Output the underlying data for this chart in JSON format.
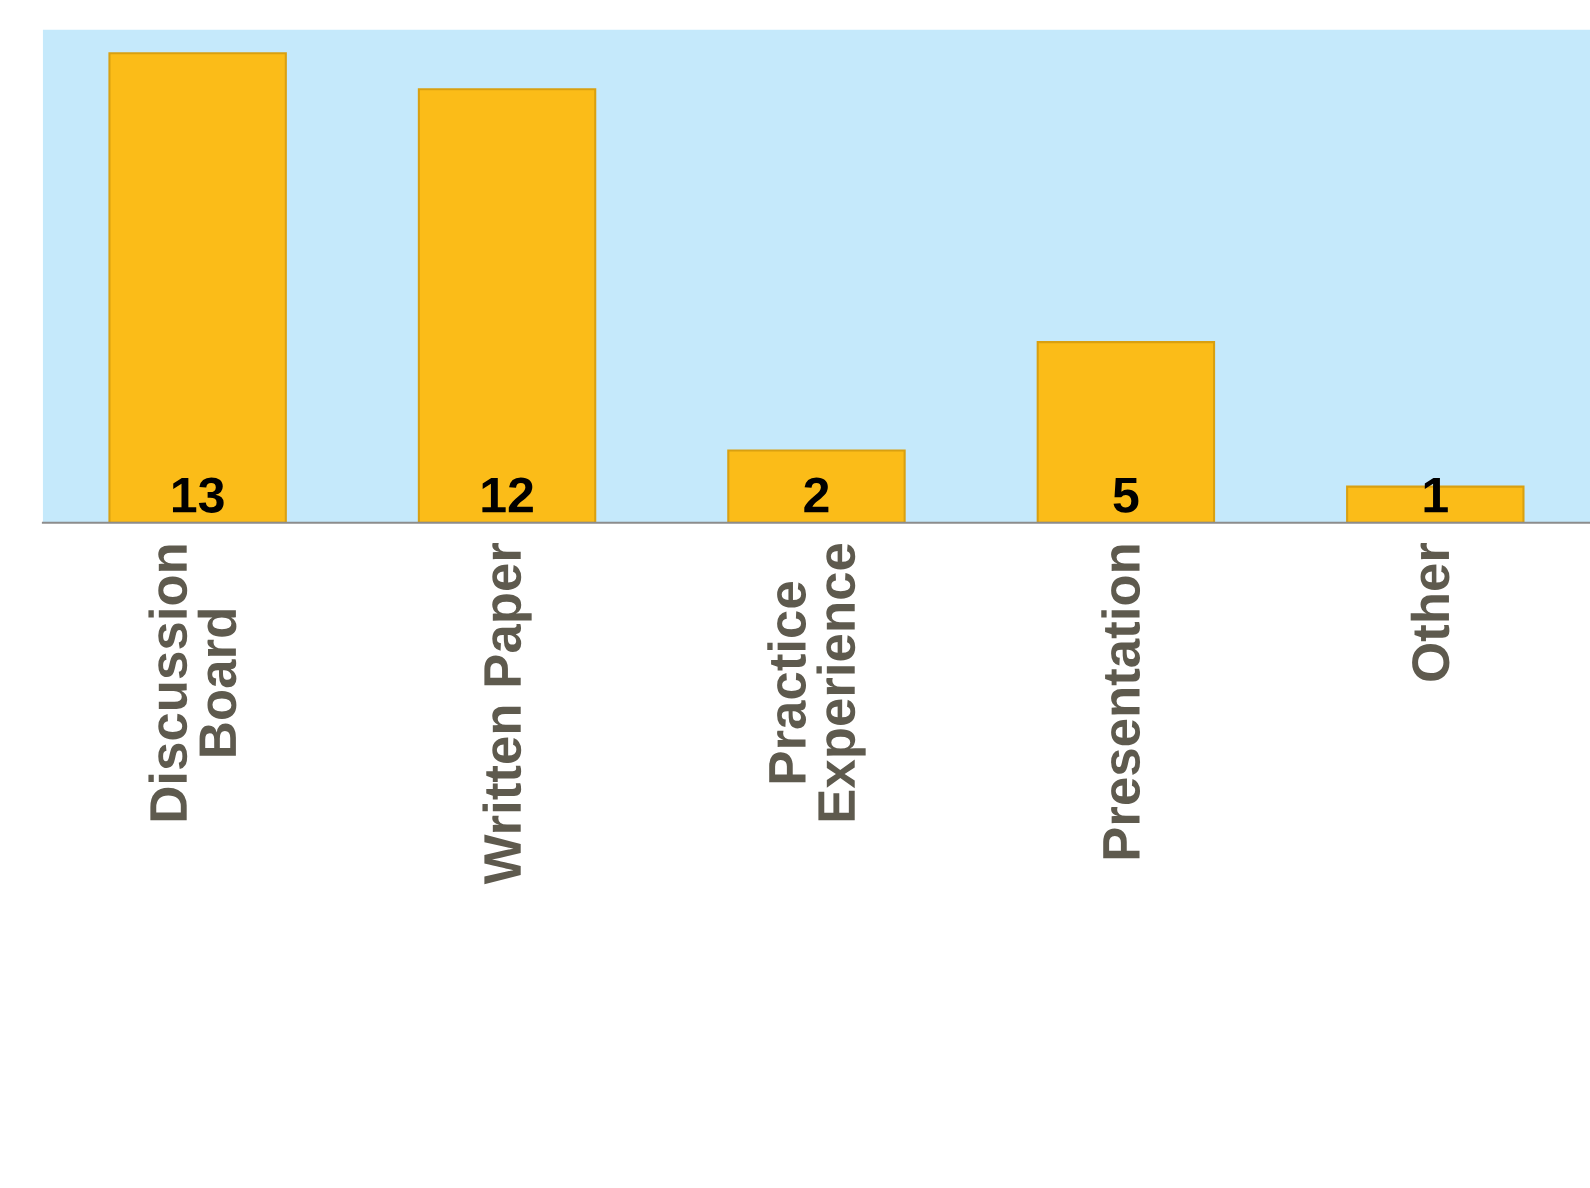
{
  "chart_data": {
    "type": "bar",
    "categories": [
      "Discussion\nBoard",
      "Written Paper",
      "Practice\nExperience",
      "Presentation",
      "Other"
    ],
    "values": [
      13,
      12,
      2,
      5,
      1
    ],
    "color": "#fbbc18",
    "data_labels": true,
    "grid": false,
    "legend": false
  }
}
